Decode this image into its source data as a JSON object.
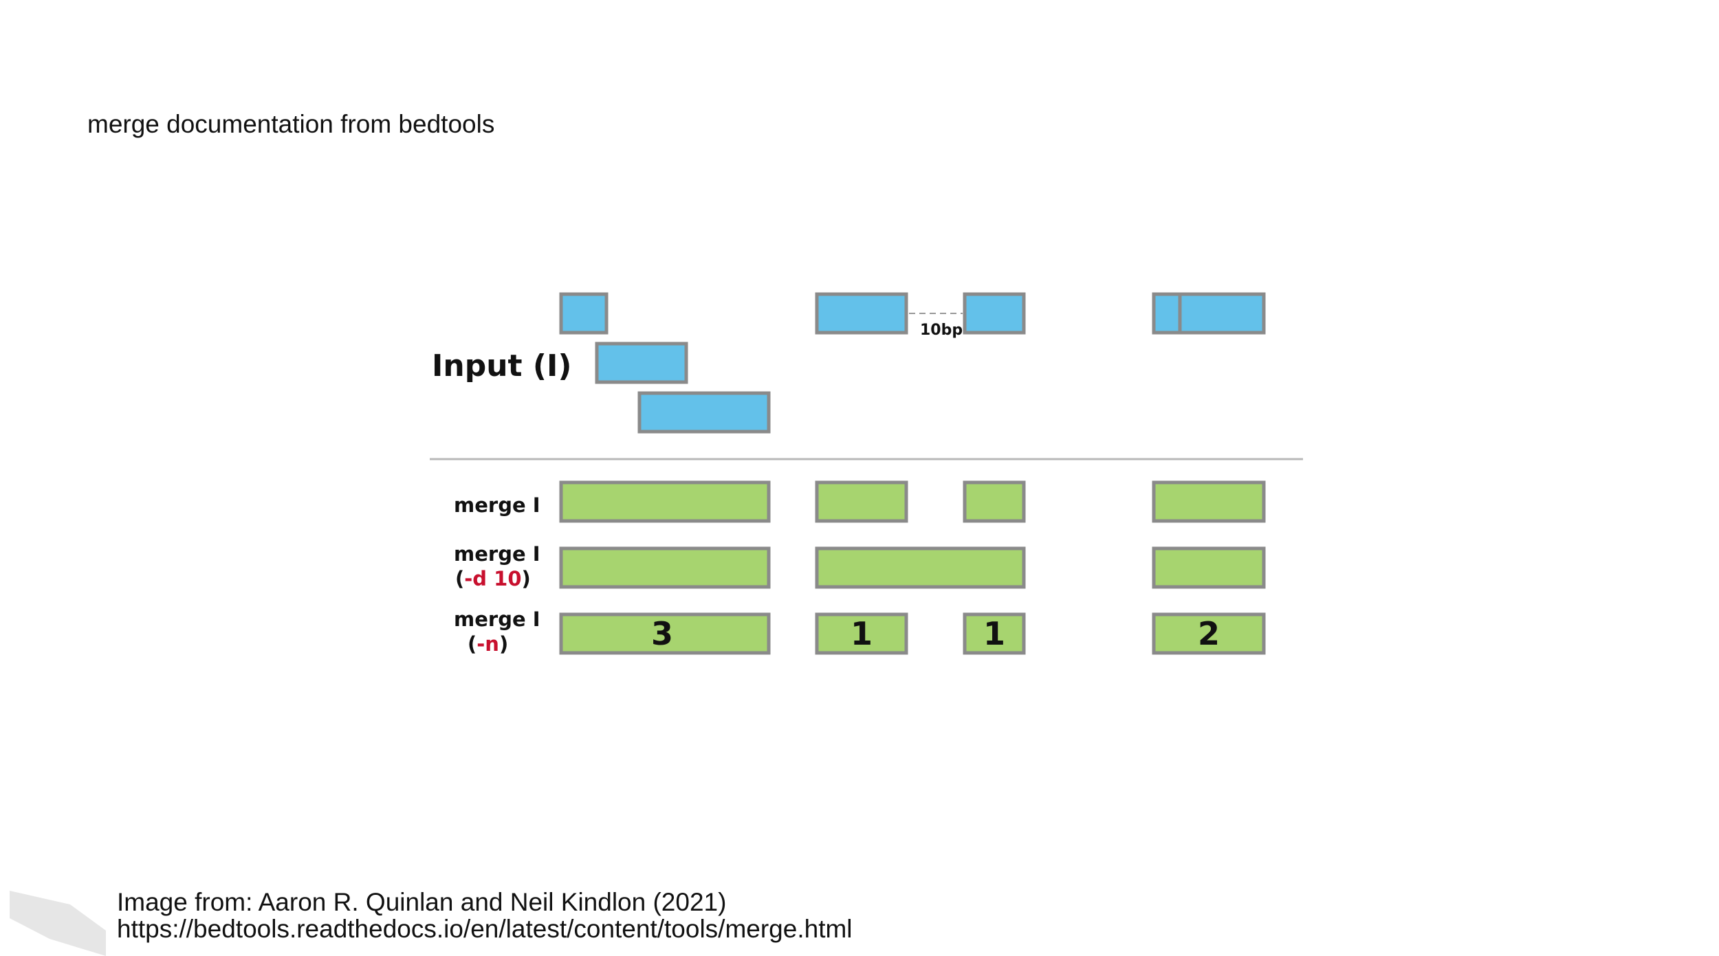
{
  "slide": {
    "title": "merge documentation from bedtools"
  },
  "diagram": {
    "input_label": "Input (I)",
    "gap_label": "10bp",
    "rows": [
      {
        "label": "merge I",
        "flag_prefix": "",
        "flag": "",
        "flag_suffix": ""
      },
      {
        "label": "merge I",
        "flag_prefix": "(",
        "flag": "-d 10",
        "flag_suffix": ")"
      },
      {
        "label": "merge I",
        "flag_prefix": "(",
        "flag": "-n",
        "flag_suffix": ")"
      }
    ],
    "counts": [
      "3",
      "1",
      "1",
      "2"
    ],
    "colors": {
      "input": "#63c1ea",
      "output": "#a7d46f",
      "border": "#8a8a8a",
      "flag": "#c8102e"
    }
  },
  "caption": {
    "line1": "Image from: Aaron R. Quinlan and Neil Kindlon (2021)",
    "line2": "https://bedtools.readthedocs.io/en/latest/content/tools/merge.html"
  }
}
